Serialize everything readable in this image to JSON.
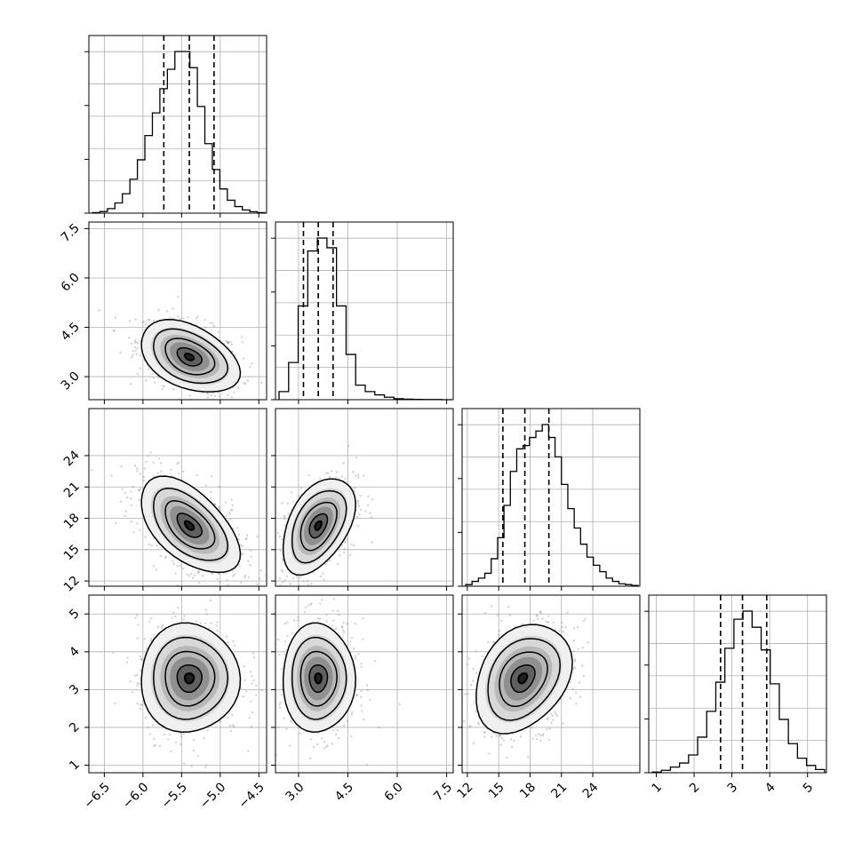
{
  "chart_data": {
    "type": "corner",
    "grid": true,
    "quantile_lines": "dashed",
    "parameters": [
      {
        "range": [
          -6.7,
          -4.4
        ],
        "ticks": [
          -6.5,
          -6.0,
          -5.5,
          -5.0,
          -4.5
        ],
        "tick_labels": [
          "−6.5",
          "−6.0",
          "−5.5",
          "−5.0",
          "−4.5"
        ],
        "quantiles": [
          -5.73,
          -5.4,
          -5.08
        ],
        "hist_bins": [
          0.003,
          0.01,
          0.028,
          0.063,
          0.12,
          0.21,
          0.33,
          0.48,
          0.62,
          0.77,
          0.89,
          1.0,
          1.0,
          0.9,
          0.66,
          0.43,
          0.27,
          0.15,
          0.08,
          0.041,
          0.02,
          0.009,
          0.003
        ]
      },
      {
        "range": [
          2.3,
          7.7
        ],
        "ticks": [
          3.0,
          4.5,
          6.0,
          7.5
        ],
        "tick_labels": [
          "3.0",
          "4.5",
          "6.0",
          "7.5"
        ],
        "y_tick_labels": [
          "7.5",
          "6.0",
          "4.5",
          "3.0"
        ],
        "quantiles": [
          3.15,
          3.6,
          4.05
        ],
        "hist_bins": [
          0.05,
          0.23,
          0.58,
          0.92,
          1.0,
          0.94,
          0.58,
          0.28,
          0.09,
          0.05,
          0.03,
          0.015,
          0.006,
          0.003,
          0.002,
          0.001,
          0.001,
          0.0
        ]
      },
      {
        "range": [
          11.5,
          28.5
        ],
        "ticks": [
          12,
          15,
          18,
          21,
          24
        ],
        "tick_labels": [
          "12",
          "15",
          "18",
          "21",
          "24"
        ],
        "y_tick_labels": [
          "24",
          "21",
          "18",
          "15",
          "12"
        ],
        "quantiles": [
          15.4,
          17.5,
          19.8
        ],
        "hist_bins": [
          0.01,
          0.03,
          0.05,
          0.08,
          0.17,
          0.3,
          0.5,
          0.71,
          0.85,
          0.87,
          0.92,
          0.96,
          1.0,
          0.92,
          0.8,
          0.63,
          0.48,
          0.36,
          0.26,
          0.18,
          0.13,
          0.09,
          0.05,
          0.03,
          0.015,
          0.01,
          0.005
        ]
      },
      {
        "range": [
          0.8,
          5.5
        ],
        "ticks": [
          1,
          2,
          3,
          4,
          5
        ],
        "tick_labels": [
          "1",
          "2",
          "3",
          "4",
          "5"
        ],
        "y_tick_labels": [
          "5",
          "4",
          "3",
          "2",
          "1"
        ],
        "quantiles": [
          2.7,
          3.28,
          3.92
        ],
        "hist_bins": [
          0.004,
          0.015,
          0.035,
          0.06,
          0.11,
          0.22,
          0.38,
          0.56,
          0.77,
          0.95,
          1.0,
          0.9,
          0.76,
          0.55,
          0.33,
          0.18,
          0.09,
          0.045,
          0.02
        ]
      }
    ],
    "correlations": [
      [
        1.0,
        -0.4,
        -0.55,
        0.0
      ],
      [
        -0.4,
        1.0,
        0.45,
        0.0
      ],
      [
        -0.55,
        0.45,
        1.0,
        0.3
      ],
      [
        0.0,
        0.0,
        0.3,
        1.0
      ]
    ],
    "stds": [
      0.32,
      0.55,
      2.3,
      0.72
    ],
    "means": [
      -5.4,
      3.6,
      17.3,
      3.3
    ],
    "color_line": "#000000",
    "color_grid": "#b0b0b0",
    "color_scatter": "#808080"
  }
}
